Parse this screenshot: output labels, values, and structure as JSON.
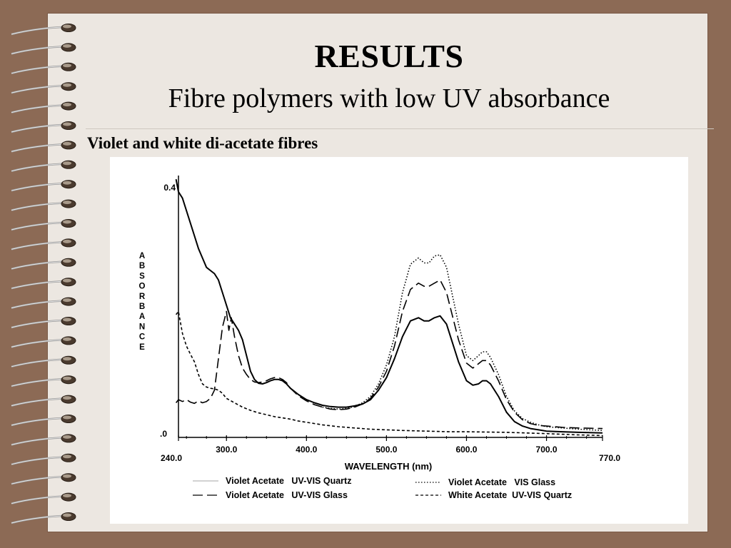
{
  "slide": {
    "title": "RESULTS",
    "subtitle": "Fibre polymers with low UV absorbance",
    "section": "Violet and white di-acetate fibres"
  },
  "chart_data": {
    "type": "line",
    "xlabel": "WAVELENGTH (nm)",
    "ylabel": "ABSORBANCE",
    "xlim": [
      240,
      770
    ],
    "ylim": [
      0,
      0.4
    ],
    "x_ticks": [
      "240.0",
      "300.0",
      "400.0",
      "500.0",
      "600.0",
      "700.0",
      "770.0"
    ],
    "y_ticks": [
      ".0",
      "0.4"
    ],
    "grid": false,
    "legend_position": "bottom",
    "series": [
      {
        "name": "Violet Acetate   UV-VIS Quartz",
        "dash": "solid",
        "points": [
          [
            237,
            0.41
          ],
          [
            240,
            0.39
          ],
          [
            245,
            0.38
          ],
          [
            250,
            0.36
          ],
          [
            255,
            0.34
          ],
          [
            260,
            0.32
          ],
          [
            265,
            0.3
          ],
          [
            270,
            0.285
          ],
          [
            275,
            0.27
          ],
          [
            280,
            0.265
          ],
          [
            285,
            0.26
          ],
          [
            290,
            0.25
          ],
          [
            295,
            0.23
          ],
          [
            300,
            0.21
          ],
          [
            305,
            0.19
          ],
          [
            310,
            0.18
          ],
          [
            315,
            0.17
          ],
          [
            320,
            0.155
          ],
          [
            325,
            0.13
          ],
          [
            330,
            0.105
          ],
          [
            335,
            0.092
          ],
          [
            340,
            0.086
          ],
          [
            345,
            0.085
          ],
          [
            350,
            0.087
          ],
          [
            355,
            0.09
          ],
          [
            360,
            0.092
          ],
          [
            365,
            0.092
          ],
          [
            370,
            0.09
          ],
          [
            375,
            0.085
          ],
          [
            380,
            0.078
          ],
          [
            390,
            0.068
          ],
          [
            400,
            0.06
          ],
          [
            410,
            0.055
          ],
          [
            420,
            0.051
          ],
          [
            430,
            0.049
          ],
          [
            440,
            0.048
          ],
          [
            450,
            0.048
          ],
          [
            460,
            0.05
          ],
          [
            470,
            0.053
          ],
          [
            480,
            0.06
          ],
          [
            490,
            0.075
          ],
          [
            500,
            0.095
          ],
          [
            510,
            0.125
          ],
          [
            520,
            0.16
          ],
          [
            530,
            0.185
          ],
          [
            540,
            0.19
          ],
          [
            547,
            0.185
          ],
          [
            553,
            0.185
          ],
          [
            560,
            0.19
          ],
          [
            567,
            0.193
          ],
          [
            575,
            0.18
          ],
          [
            580,
            0.16
          ],
          [
            590,
            0.12
          ],
          [
            600,
            0.09
          ],
          [
            608,
            0.083
          ],
          [
            615,
            0.085
          ],
          [
            620,
            0.09
          ],
          [
            625,
            0.09
          ],
          [
            630,
            0.085
          ],
          [
            640,
            0.065
          ],
          [
            650,
            0.04
          ],
          [
            660,
            0.025
          ],
          [
            670,
            0.018
          ],
          [
            680,
            0.014
          ],
          [
            690,
            0.012
          ],
          [
            700,
            0.01
          ],
          [
            720,
            0.009
          ],
          [
            740,
            0.008
          ],
          [
            770,
            0.007
          ]
        ]
      },
      {
        "name": "Violet Acetate   UV-VIS Glass",
        "dash": "long-dash",
        "points": [
          [
            237,
            0.055
          ],
          [
            240,
            0.06
          ],
          [
            245,
            0.057
          ],
          [
            250,
            0.06
          ],
          [
            255,
            0.056
          ],
          [
            260,
            0.054
          ],
          [
            265,
            0.058
          ],
          [
            270,
            0.055
          ],
          [
            275,
            0.057
          ],
          [
            280,
            0.062
          ],
          [
            285,
            0.075
          ],
          [
            290,
            0.125
          ],
          [
            295,
            0.175
          ],
          [
            300,
            0.2
          ],
          [
            303,
            0.17
          ],
          [
            306,
            0.19
          ],
          [
            310,
            0.16
          ],
          [
            315,
            0.13
          ],
          [
            320,
            0.11
          ],
          [
            325,
            0.1
          ],
          [
            330,
            0.092
          ],
          [
            335,
            0.088
          ],
          [
            340,
            0.087
          ],
          [
            345,
            0.088
          ],
          [
            350,
            0.09
          ],
          [
            355,
            0.093
          ],
          [
            360,
            0.095
          ],
          [
            365,
            0.095
          ],
          [
            370,
            0.092
          ],
          [
            375,
            0.087
          ],
          [
            380,
            0.078
          ],
          [
            390,
            0.066
          ],
          [
            400,
            0.058
          ],
          [
            410,
            0.052
          ],
          [
            420,
            0.048
          ],
          [
            430,
            0.045
          ],
          [
            440,
            0.044
          ],
          [
            450,
            0.045
          ],
          [
            460,
            0.048
          ],
          [
            470,
            0.053
          ],
          [
            480,
            0.062
          ],
          [
            490,
            0.08
          ],
          [
            500,
            0.105
          ],
          [
            510,
            0.145
          ],
          [
            520,
            0.2
          ],
          [
            530,
            0.235
          ],
          [
            540,
            0.245
          ],
          [
            547,
            0.24
          ],
          [
            553,
            0.24
          ],
          [
            560,
            0.245
          ],
          [
            567,
            0.25
          ],
          [
            575,
            0.23
          ],
          [
            580,
            0.205
          ],
          [
            590,
            0.155
          ],
          [
            600,
            0.118
          ],
          [
            608,
            0.11
          ],
          [
            615,
            0.117
          ],
          [
            620,
            0.122
          ],
          [
            625,
            0.122
          ],
          [
            630,
            0.115
          ],
          [
            640,
            0.09
          ],
          [
            650,
            0.06
          ],
          [
            660,
            0.04
          ],
          [
            670,
            0.028
          ],
          [
            680,
            0.022
          ],
          [
            690,
            0.019
          ],
          [
            700,
            0.018
          ],
          [
            720,
            0.016
          ],
          [
            740,
            0.015
          ],
          [
            770,
            0.014
          ]
        ]
      },
      {
        "name": "Violet Acetate   VIS Glass",
        "dash": "dotted",
        "points": [
          [
            420,
            0.048
          ],
          [
            430,
            0.046
          ],
          [
            440,
            0.045
          ],
          [
            450,
            0.046
          ],
          [
            460,
            0.049
          ],
          [
            470,
            0.055
          ],
          [
            480,
            0.065
          ],
          [
            490,
            0.085
          ],
          [
            500,
            0.115
          ],
          [
            510,
            0.16
          ],
          [
            520,
            0.23
          ],
          [
            530,
            0.275
          ],
          [
            540,
            0.285
          ],
          [
            547,
            0.277
          ],
          [
            553,
            0.277
          ],
          [
            560,
            0.288
          ],
          [
            567,
            0.29
          ],
          [
            575,
            0.27
          ],
          [
            580,
            0.24
          ],
          [
            590,
            0.18
          ],
          [
            600,
            0.13
          ],
          [
            608,
            0.122
          ],
          [
            615,
            0.13
          ],
          [
            620,
            0.136
          ],
          [
            625,
            0.136
          ],
          [
            630,
            0.127
          ],
          [
            640,
            0.1
          ],
          [
            650,
            0.065
          ],
          [
            660,
            0.042
          ],
          [
            670,
            0.03
          ],
          [
            680,
            0.024
          ],
          [
            690,
            0.02
          ],
          [
            700,
            0.017
          ],
          [
            720,
            0.015
          ],
          [
            740,
            0.013
          ],
          [
            770,
            0.011
          ]
        ]
      },
      {
        "name": "White Acetate  UV-VIS Quartz",
        "dash": "short-dash",
        "points": [
          [
            237,
            0.195
          ],
          [
            240,
            0.2
          ],
          [
            245,
            0.165
          ],
          [
            250,
            0.145
          ],
          [
            255,
            0.132
          ],
          [
            260,
            0.12
          ],
          [
            265,
            0.1
          ],
          [
            270,
            0.085
          ],
          [
            275,
            0.08
          ],
          [
            280,
            0.078
          ],
          [
            285,
            0.077
          ],
          [
            290,
            0.075
          ],
          [
            295,
            0.07
          ],
          [
            300,
            0.062
          ],
          [
            310,
            0.055
          ],
          [
            320,
            0.048
          ],
          [
            330,
            0.043
          ],
          [
            340,
            0.039
          ],
          [
            350,
            0.036
          ],
          [
            360,
            0.033
          ],
          [
            370,
            0.031
          ],
          [
            380,
            0.029
          ],
          [
            390,
            0.026
          ],
          [
            400,
            0.024
          ],
          [
            420,
            0.02
          ],
          [
            440,
            0.017
          ],
          [
            460,
            0.015
          ],
          [
            480,
            0.013
          ],
          [
            500,
            0.012
          ],
          [
            520,
            0.011
          ],
          [
            550,
            0.01
          ],
          [
            580,
            0.009
          ],
          [
            600,
            0.009
          ],
          [
            650,
            0.008
          ],
          [
            700,
            0.006
          ],
          [
            740,
            0.004
          ],
          [
            770,
            0.003
          ]
        ]
      }
    ]
  }
}
